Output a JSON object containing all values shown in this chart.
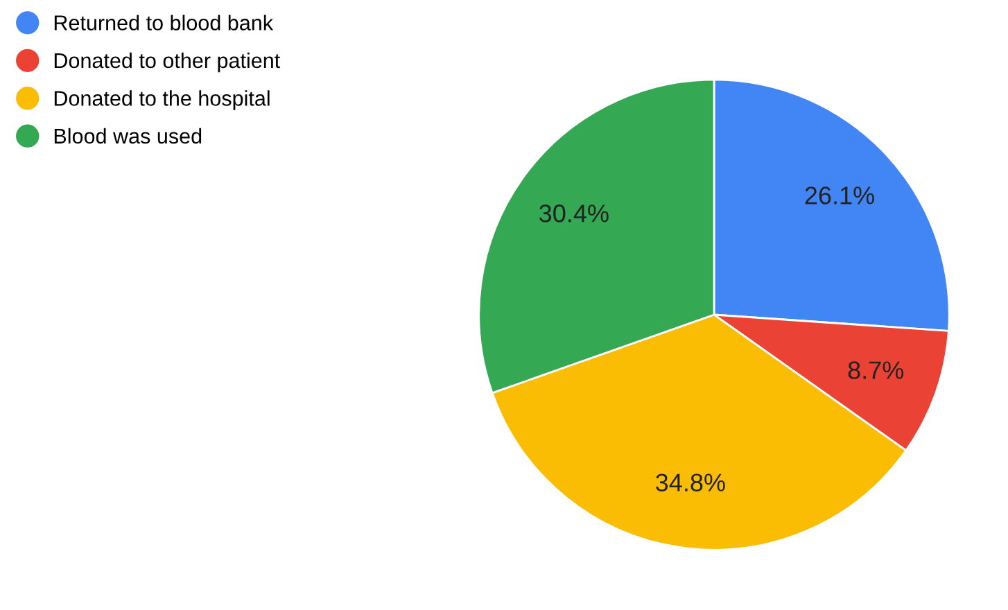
{
  "chart_data": {
    "type": "pie",
    "categories": [
      "Returned to blood bank",
      "Donated to other patient",
      "Donated to the hospital",
      "Blood was used"
    ],
    "values": [
      26.1,
      8.7,
      34.8,
      30.4
    ],
    "colors": [
      "#4285f4",
      "#ea4335",
      "#fbbc04",
      "#34a853"
    ],
    "value_labels": [
      "26.1%",
      "8.7%",
      "34.8%",
      "30.4%"
    ],
    "legend": "top left"
  }
}
